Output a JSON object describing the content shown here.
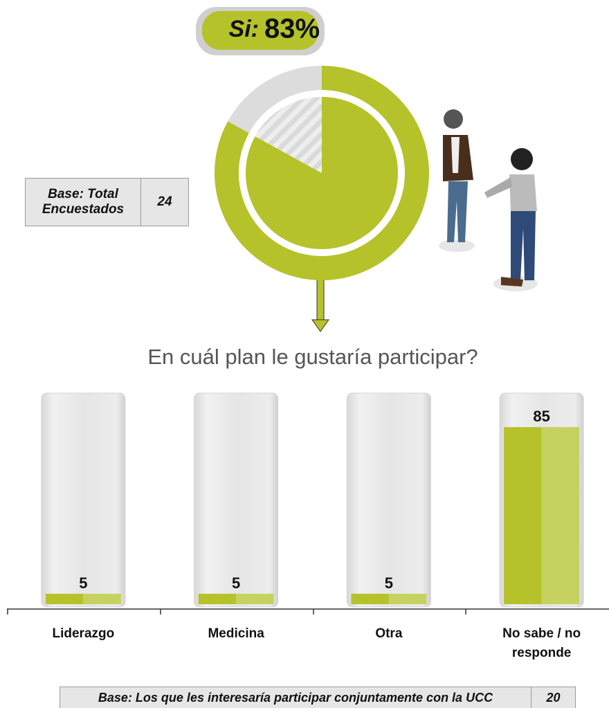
{
  "chart_data": [
    {
      "type": "pie",
      "categories": [
        "Si:",
        null
      ],
      "values": [
        83,
        17
      ],
      "value_labels": [
        "83%",
        null
      ],
      "colors": [
        "#b5c22a",
        "#dcdcdc"
      ]
    },
    {
      "type": "bar",
      "title": "En cuál plan le gustaría participar?",
      "categories": [
        "Liderazgo",
        "Medicina",
        "Otra",
        "No sabe / no responde"
      ],
      "values": [
        5,
        5,
        5,
        85
      ],
      "ylim": [
        0,
        100
      ],
      "colors": [
        "#b5c22a",
        "#c6d25f"
      ]
    }
  ],
  "base_top": {
    "label": "Base: Total Encuestados",
    "value": "24"
  },
  "base_bottom": {
    "label": "Base: Los que les interesaría participar conjuntamente con la UCC",
    "value": "20"
  }
}
